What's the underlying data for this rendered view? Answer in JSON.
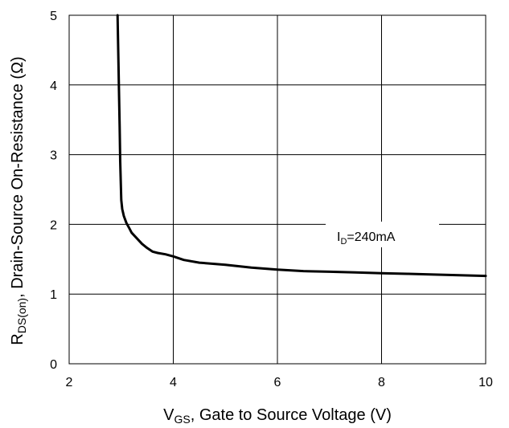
{
  "chart_data": {
    "type": "line",
    "xlabel_main": "V",
    "xlabel_sub": "GS",
    "xlabel_rest": ", Gate to Source Voltage (V)",
    "ylabel_main": "R",
    "ylabel_sub": "DS(on)",
    "ylabel_rest": ", Drain-Source On-Resistance (Ω)",
    "xlim": [
      2,
      10
    ],
    "ylim": [
      0,
      5
    ],
    "x_ticks": [
      "2",
      "4",
      "6",
      "8",
      "10"
    ],
    "y_ticks": [
      "0",
      "1",
      "2",
      "3",
      "4",
      "5"
    ],
    "grid": true,
    "annotation": {
      "main": "I",
      "sub": "D",
      "rest": "=240mA"
    },
    "series": [
      {
        "x": [
          2.93,
          2.95,
          2.97,
          2.98,
          3.0,
          3.02,
          3.05,
          3.1,
          3.15,
          3.2,
          3.3,
          3.4,
          3.5,
          3.6,
          3.7,
          3.85,
          4.0,
          4.2,
          4.5,
          5.0,
          5.5,
          6.0,
          6.5,
          7.0,
          7.5,
          8.0,
          8.5,
          9.0,
          9.5,
          10.0
        ],
        "y": [
          5.0,
          4.2,
          3.4,
          2.9,
          2.35,
          2.22,
          2.12,
          2.02,
          1.95,
          1.88,
          1.8,
          1.72,
          1.66,
          1.61,
          1.59,
          1.57,
          1.54,
          1.49,
          1.45,
          1.42,
          1.38,
          1.35,
          1.33,
          1.32,
          1.31,
          1.3,
          1.29,
          1.28,
          1.27,
          1.26
        ]
      }
    ],
    "line_color": "#000000"
  }
}
